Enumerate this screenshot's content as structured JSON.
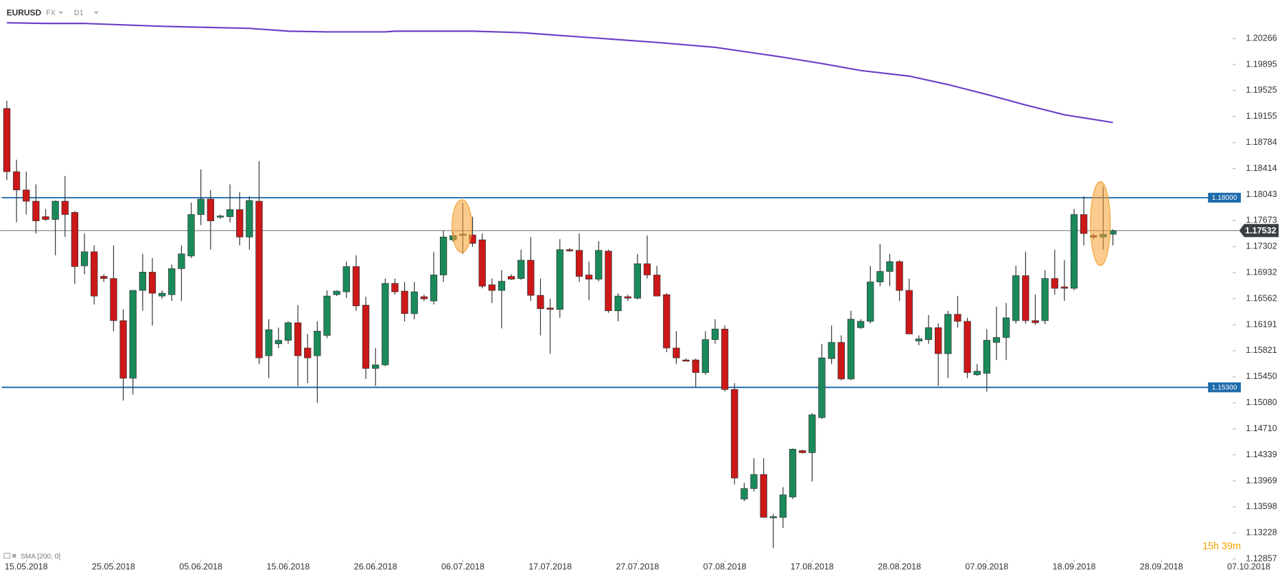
{
  "header": {
    "symbol": "EURUSD",
    "market": "FX",
    "interval": "D1"
  },
  "countdown": "15h 39m",
  "chart_data": {
    "type": "candlestick",
    "up_color": "#1a8a5a",
    "down_color": "#cc1818",
    "open": [
      1.1927,
      1.1837,
      1.1811,
      1.1795,
      1.1773,
      1.1769,
      1.1795,
      1.1779,
      1.1703,
      1.1723,
      1.1688,
      1.1685,
      1.1625,
      1.1543,
      1.1668,
      1.1694,
      1.166,
      1.1662,
      1.1699,
      1.1717,
      1.1776,
      1.1798,
      1.1773,
      1.1773,
      1.1783,
      1.1744,
      1.1795,
      1.1575,
      1.1592,
      1.1597,
      1.1622,
      1.1586,
      1.1575,
      1.1604,
      1.1662,
      1.1666,
      1.1702,
      1.1647,
      1.1557,
      1.1562,
      1.1678,
      1.1667,
      1.1635,
      1.1659,
      1.1653,
      1.169,
      1.174,
      1.1747,
      1.1747,
      1.174,
      1.1676,
      1.1668,
      1.1688,
      1.1685,
      1.1711,
      1.1661,
      1.1643,
      1.1641,
      1.1726,
      1.1725,
      1.169,
      1.1684,
      1.1724,
      1.1639,
      1.1659,
      1.1657,
      1.1706,
      1.169,
      1.1662,
      1.1586,
      1.1569,
      1.1569,
      1.1551,
      1.1598,
      1.1613,
      1.1527,
      1.1371,
      1.1386,
      1.1406,
      1.1345,
      1.1345,
      1.1374,
      1.144,
      1.1437,
      1.1487,
      1.1571,
      1.1594,
      1.1542,
      1.1615,
      1.1624,
      1.168,
      1.1695,
      1.1709,
      1.1668,
      1.1596,
      1.1598,
      1.1615,
      1.1578,
      1.1634,
      1.1624,
      1.1548,
      1.155,
      1.1594,
      1.1601,
      1.1625,
      1.1689,
      1.1625,
      1.1625,
      1.1685,
      1.1673,
      1.1671,
      1.1776,
      1.1746,
      1.1744,
      1.1748
    ],
    "high": [
      1.1938,
      1.1854,
      1.1837,
      1.1819,
      1.1784,
      1.1796,
      1.1831,
      1.1781,
      1.1749,
      1.1732,
      1.1691,
      1.1732,
      1.1641,
      1.1662,
      1.172,
      1.1714,
      1.1668,
      1.1705,
      1.1732,
      1.1793,
      1.184,
      1.1811,
      1.1776,
      1.1819,
      1.1808,
      1.1802,
      1.1852,
      1.1627,
      1.1615,
      1.1624,
      1.1647,
      1.1606,
      1.1624,
      1.1668,
      1.1668,
      1.1709,
      1.1718,
      1.1659,
      1.1586,
      1.1685,
      1.1685,
      1.168,
      1.168,
      1.1662,
      1.1723,
      1.1753,
      1.1751,
      1.1793,
      1.1773,
      1.1749,
      1.1685,
      1.1697,
      1.1691,
      1.1726,
      1.1744,
      1.1685,
      1.1656,
      1.1741,
      1.1728,
      1.1749,
      1.1709,
      1.1738,
      1.1726,
      1.1664,
      1.1662,
      1.172,
      1.1746,
      1.1703,
      1.1664,
      1.161,
      1.1571,
      1.1571,
      1.161,
      1.1627,
      1.1618,
      1.1536,
      1.1394,
      1.1429,
      1.1429,
      1.135,
      1.1388,
      1.1443,
      1.1441,
      1.1493,
      1.1592,
      1.1618,
      1.1604,
      1.1639,
      1.1627,
      1.1703,
      1.1734,
      1.172,
      1.1711,
      1.1685,
      1.1604,
      1.1633,
      1.1621,
      1.1639,
      1.166,
      1.1629,
      1.1563,
      1.1613,
      1.1645,
      1.165,
      1.1703,
      1.1723,
      1.1662,
      1.1697,
      1.1726,
      1.1711,
      1.1784,
      1.1802,
      1.1749,
      1.1816,
      1.1755
    ],
    "low": [
      1.1825,
      1.1765,
      1.1776,
      1.1749,
      1.1767,
      1.1718,
      1.1744,
      1.1677,
      1.1691,
      1.1648,
      1.168,
      1.161,
      1.1511,
      1.152,
      1.1639,
      1.1618,
      1.1656,
      1.1653,
      1.1653,
      1.1714,
      1.1761,
      1.1726,
      1.177,
      1.1765,
      1.1732,
      1.1726,
      1.1563,
      1.1543,
      1.1586,
      1.1592,
      1.1532,
      1.1536,
      1.1508,
      1.16,
      1.166,
      1.1657,
      1.1639,
      1.1542,
      1.1532,
      1.156,
      1.1662,
      1.1624,
      1.1627,
      1.1653,
      1.1648,
      1.168,
      1.1737,
      1.172,
      1.173,
      1.1671,
      1.165,
      1.1614,
      1.1683,
      1.1683,
      1.1653,
      1.1604,
      1.1578,
      1.1629,
      1.1723,
      1.168,
      1.1654,
      1.1681,
      1.1636,
      1.1624,
      1.1653,
      1.1655,
      1.1685,
      1.166,
      1.158,
      1.1563,
      1.1568,
      1.153,
      1.1548,
      1.1592,
      1.1524,
      1.1392,
      1.1368,
      1.1382,
      1.1345,
      1.1301,
      1.133,
      1.1371,
      1.1436,
      1.1396,
      1.1485,
      1.1563,
      1.154,
      1.154,
      1.1613,
      1.1621,
      1.1674,
      1.1674,
      1.1653,
      1.1606,
      1.159,
      1.1592,
      1.1532,
      1.1543,
      1.1615,
      1.1543,
      1.1546,
      1.1524,
      1.1569,
      1.1569,
      1.1621,
      1.1621,
      1.1619,
      1.162,
      1.1662,
      1.1653,
      1.1668,
      1.1732,
      1.1741,
      1.1726,
      1.1732
    ],
    "close": [
      1.1837,
      1.1811,
      1.1795,
      1.1767,
      1.1769,
      1.1795,
      1.1776,
      1.1702,
      1.1723,
      1.166,
      1.1685,
      1.1625,
      1.1543,
      1.1668,
      1.1694,
      1.1664,
      1.1664,
      1.1699,
      1.172,
      1.1776,
      1.1798,
      1.1767,
      1.1774,
      1.1783,
      1.1744,
      1.1796,
      1.1572,
      1.1612,
      1.1597,
      1.1622,
      1.1575,
      1.1572,
      1.161,
      1.166,
      1.1667,
      1.1702,
      1.1646,
      1.1557,
      1.1562,
      1.1678,
      1.1666,
      1.1635,
      1.1666,
      1.1656,
      1.169,
      1.1744,
      1.1746,
      1.1748,
      1.1735,
      1.1674,
      1.1668,
      1.1681,
      1.1684,
      1.1711,
      1.1661,
      1.1642,
      1.1641,
      1.1726,
      1.1725,
      1.1688,
      1.1684,
      1.1725,
      1.1639,
      1.166,
      1.1657,
      1.1706,
      1.169,
      1.166,
      1.1586,
      1.1572,
      1.1568,
      1.1551,
      1.1598,
      1.1613,
      1.1527,
      1.1401,
      1.1386,
      1.1406,
      1.1345,
      1.1346,
      1.1377,
      1.1442,
      1.1437,
      1.1491,
      1.1572,
      1.1594,
      1.1542,
      1.1627,
      1.1624,
      1.168,
      1.1695,
      1.1709,
      1.1668,
      1.1606,
      1.1599,
      1.1615,
      1.1578,
      1.1634,
      1.1624,
      1.1551,
      1.1553,
      1.1597,
      1.1601,
      1.1629,
      1.1689,
      1.1625,
      1.1622,
      1.1685,
      1.1671,
      1.1671,
      1.1776,
      1.1749,
      1.1744,
      1.1748,
      1.1753
    ],
    "sma": {
      "name": "SMA [200, 0]",
      "color": "#6a3fc8",
      "x": [
        0,
        4,
        8,
        16,
        25,
        29,
        33,
        39,
        40,
        48,
        53,
        59,
        67,
        73,
        80,
        84,
        88,
        93,
        97,
        101,
        105,
        109,
        114
      ],
      "values": [
        1.2049,
        1.2048,
        1.2048,
        1.2044,
        1.2041,
        1.2037,
        1.2036,
        1.2036,
        1.2037,
        1.2037,
        1.2035,
        1.2029,
        1.2021,
        1.2014,
        1.2,
        1.1991,
        1.1981,
        1.1973,
        1.1961,
        1.1947,
        1.1932,
        1.1918,
        1.1907
      ]
    },
    "levels": [
      {
        "value": 1.18,
        "label": "1.18000"
      },
      {
        "value": 1.153,
        "label": "1.15300"
      }
    ],
    "level_color": "#1f6bab",
    "last_price": 1.17532,
    "xlim": [
      -0.7,
      131
    ],
    "xticks": [
      {
        "value": 2,
        "label": "15.05.2018"
      },
      {
        "value": 11,
        "label": "25.05.2018"
      },
      {
        "value": 20,
        "label": "05.06.2018"
      },
      {
        "value": 29,
        "label": "15.06.2018"
      },
      {
        "value": 38,
        "label": "26.06.2018"
      },
      {
        "value": 47,
        "label": "06.07.2018"
      },
      {
        "value": 56,
        "label": "17.07.2018"
      },
      {
        "value": 65,
        "label": "27.07.2018"
      },
      {
        "value": 74,
        "label": "07.08.2018"
      },
      {
        "value": 83,
        "label": "17.08.2018"
      },
      {
        "value": 92,
        "label": "28.08.2018"
      },
      {
        "value": 101,
        "label": "07.09.2018"
      },
      {
        "value": 110,
        "label": "18.09.2018"
      },
      {
        "value": 119,
        "label": "28.09.2018"
      },
      {
        "value": 128,
        "label": "07.10.2018"
      }
    ],
    "ylim": [
      1.12857,
      1.20814
    ],
    "yticks": [
      1.20266,
      1.19895,
      1.19525,
      1.19155,
      1.18784,
      1.18414,
      1.18043,
      1.17673,
      1.17302,
      1.16932,
      1.16562,
      1.16191,
      1.15821,
      {
        "value": 1.1545,
        "label": "1.15450"
      },
      {
        "value": 1.1508,
        "label": "1.15080"
      },
      {
        "value": 1.1471,
        "label": "1.14710"
      },
      1.14339,
      1.13969,
      1.13598,
      1.13228,
      1.12857
    ]
  }
}
